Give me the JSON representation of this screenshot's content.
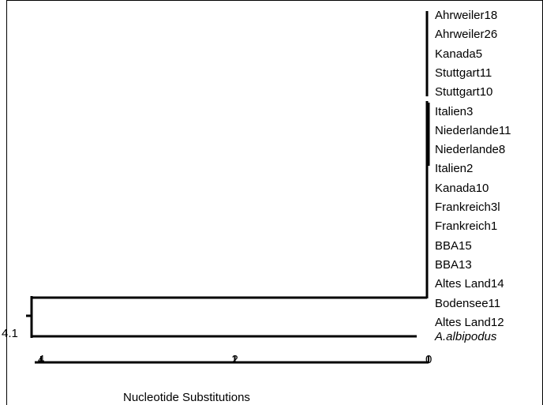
{
  "leaves": [
    {
      "label": "Ahrweiler18",
      "italic": false
    },
    {
      "label": "Ahrweiler26",
      "italic": false
    },
    {
      "label": "Kanada5",
      "italic": false
    },
    {
      "label": "Stuttgart11",
      "italic": false
    },
    {
      "label": "Stuttgart10",
      "italic": false
    },
    {
      "label": "Italien3",
      "italic": false
    },
    {
      "label": "Niederlande11",
      "italic": false
    },
    {
      "label": "Niederlande8",
      "italic": false
    },
    {
      "label": "Italien2",
      "italic": false
    },
    {
      "label": "Kanada10",
      "italic": false
    },
    {
      "label": "Frankreich3l",
      "italic": false
    },
    {
      "label": "Frankreich1",
      "italic": false
    },
    {
      "label": "BBA15",
      "italic": false
    },
    {
      "label": "BBA13",
      "italic": false
    },
    {
      "label": "Altes Land14",
      "italic": false
    },
    {
      "label": "Bodensee11",
      "italic": false
    },
    {
      "label": "Altes Land12",
      "italic": false
    },
    {
      "label": "A.albipodus",
      "italic": true
    }
  ],
  "root_label": "4.1",
  "axis": {
    "title": "Nucleotide Substitutions",
    "ticks": [
      {
        "value": 4,
        "label": "4"
      },
      {
        "value": 2,
        "label": "2"
      },
      {
        "value": 0,
        "label": "0"
      }
    ]
  }
}
